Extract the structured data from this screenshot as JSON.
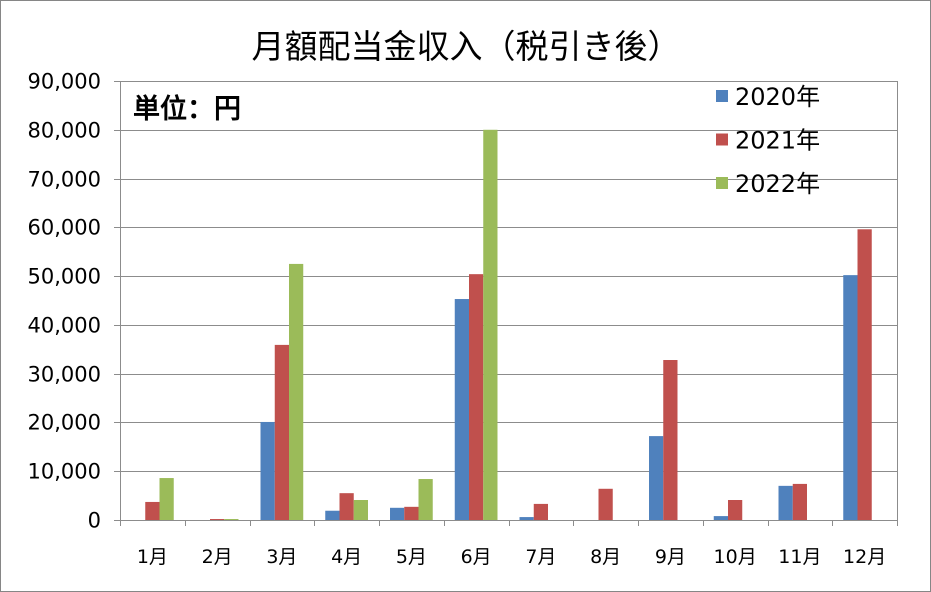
{
  "chart_data": {
    "type": "bar",
    "title": "月額配当金収入（税引き後）",
    "annotation": "単位：円",
    "categories": [
      "1月",
      "2月",
      "3月",
      "4月",
      "5月",
      "6月",
      "7月",
      "8月",
      "9月",
      "10月",
      "11月",
      "12月"
    ],
    "series": [
      {
        "name": "2020年",
        "color": "#4F81BD",
        "values": [
          0,
          0,
          20100,
          1900,
          2500,
          45300,
          600,
          0,
          17200,
          800,
          7000,
          50200
        ]
      },
      {
        "name": "2021年",
        "color": "#C0504D",
        "values": [
          3700,
          200,
          35900,
          5500,
          2700,
          50400,
          3300,
          6400,
          32800,
          4100,
          7400,
          59600
        ]
      },
      {
        "name": "2022年",
        "color": "#9BBB59",
        "values": [
          8600,
          200,
          52500,
          4100,
          8400,
          80000,
          null,
          null,
          null,
          null,
          null,
          null
        ]
      }
    ],
    "ylim": [
      0,
      90000
    ],
    "y_tick_step": 10000,
    "y_tick_labels": [
      "0",
      "10,000",
      "20,000",
      "30,000",
      "40,000",
      "50,000",
      "60,000",
      "70,000",
      "80,000",
      "90,000"
    ],
    "grid": true,
    "legend_position": "top-right"
  }
}
